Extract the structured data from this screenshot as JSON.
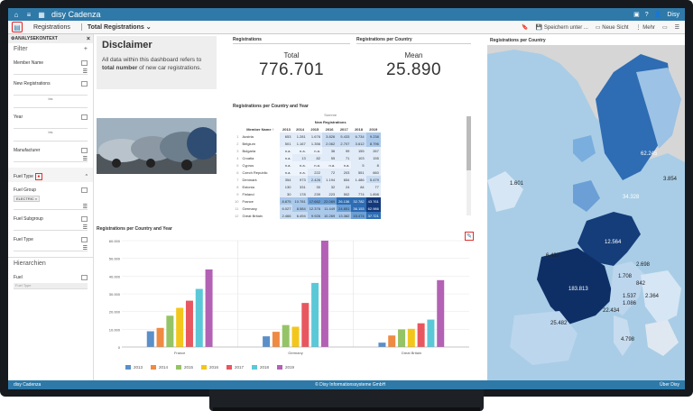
{
  "app": {
    "brand": "disy Cadenza",
    "user": "Disy"
  },
  "secondary": {
    "tab_registrations": "Registrations",
    "tab_total": "Total Registrations",
    "save": "Speichern unter ...",
    "new_view": "Neue Sicht",
    "more": "Mehr"
  },
  "footer": {
    "left": "disy Cadenza",
    "center": "© Disy Informationssysteme GmbH",
    "right": "Über Disy"
  },
  "panel": {
    "header": "ANALYSEKONTEXT",
    "filter": "Filter",
    "filter_plus": "+",
    "fields": [
      {
        "label": "Member Name"
      },
      {
        "label": "New Registrations",
        "bis": "bis"
      },
      {
        "label": "Year",
        "bis": "bis"
      },
      {
        "label": "Manufacturer"
      }
    ],
    "fuel_type_title": "Fuel Type",
    "fuel_group": "Fuel Group",
    "fuel_chip": "ELECTRIC ×",
    "fuel_subgroup": "Fuel Subgroup",
    "fuel_type": "Fuel Type",
    "hierarchy": "Hierarchien",
    "fuel": "Fuel",
    "fuel_placeholder": "Fuel Type"
  },
  "disclaimer": {
    "title": "Disclaimer",
    "line1": "All data within this dashboard refers to",
    "bold": "total number",
    "line2": " of new car registrations."
  },
  "kpi": {
    "reg_title": "Registrations",
    "total_label": "Total",
    "total_value": "776.701",
    "country_title": "Registrations per Country",
    "mean_label": "Mean",
    "mean_value": "25.890"
  },
  "table": {
    "title": "Registrations per Country and Year",
    "sum_label": "Summe",
    "sub_label": "New Registrations",
    "member_header": "Member Name",
    "years": [
      "2013",
      "2014",
      "2015",
      "2016",
      "2017",
      "2018",
      "2019"
    ],
    "rows": [
      {
        "n": "1",
        "c": "Austria",
        "v": [
          "653",
          "1.281",
          "1.676",
          "3.826",
          "5.433",
          "6.734",
          "9.238"
        ]
      },
      {
        "n": "2",
        "c": "Belgium",
        "v": [
          "501",
          "1.167",
          "1.356",
          "2.062",
          "2.707",
          "3.612",
          "8.796"
        ]
      },
      {
        "n": "3",
        "c": "Bulgaria",
        "v": [
          "n.a.",
          "n.a.",
          "n.a.",
          "36",
          "99",
          "155",
          "267"
        ]
      },
      {
        "n": "4",
        "c": "Croatia",
        "v": [
          "n.a.",
          "13",
          "82",
          "55",
          "71",
          "103",
          "155"
        ]
      },
      {
        "n": "5",
        "c": "Cyprus",
        "v": [
          "n.a.",
          "n.a.",
          "n.a.",
          "n.a.",
          "n.a.",
          "5",
          "8"
        ]
      },
      {
        "n": "6",
        "c": "Czech Republic",
        "v": [
          "n.a.",
          "n.a.",
          "222",
          "72",
          "203",
          "551",
          "660"
        ]
      },
      {
        "n": "7",
        "c": "Denmark",
        "v": [
          "354",
          "973",
          "2.426",
          "1.194",
          "654",
          "1.486",
          "5.479"
        ]
      },
      {
        "n": "8",
        "c": "Estonia",
        "v": [
          "130",
          "331",
          "30",
          "32",
          "24",
          "84",
          "77"
        ]
      },
      {
        "n": "9",
        "c": "Finland",
        "v": [
          "30",
          "178",
          "239",
          "223",
          "502",
          "774",
          "1.898"
        ]
      },
      {
        "n": "10",
        "c": "France",
        "v": [
          "8.875",
          "10.781",
          "17.662",
          "22.089",
          "26.136",
          "32.782",
          "43.761"
        ]
      },
      {
        "n": "11",
        "c": "Germany",
        "v": [
          "6.027",
          "8.584",
          "12.376",
          "11.449",
          "24.851",
          "36.153",
          "62.986"
        ]
      },
      {
        "n": "12",
        "c": "Great Britain",
        "v": [
          "2.466",
          "6.494",
          "9.926",
          "10.269",
          "13.382",
          "15.474",
          "37.721"
        ]
      }
    ]
  },
  "chart_title": "Registrations per Country and Year",
  "map_title": "Registrations per Country",
  "map_labels": [
    "1.601",
    "62.245",
    "3.854",
    "34.328",
    "12.564",
    "6.437",
    "2.698",
    "183.813",
    "1.708",
    "842",
    "2.364",
    "1.537",
    "25.482",
    "22.434",
    "4.798",
    "1.086"
  ],
  "colors": {
    "2013": "#5b8fc9",
    "2014": "#ef8a43",
    "2015": "#95c466",
    "2016": "#f3c61c",
    "2017": "#e8575f",
    "2018": "#5bc8d8",
    "2019": "#b361b5"
  },
  "chart_data": {
    "type": "bar",
    "title": "Registrations per Country and Year",
    "categories": [
      "France",
      "Germany",
      "Great Britain"
    ],
    "ylim": [
      0,
      60000
    ],
    "yticks": [
      "0",
      "10.000",
      "20.000",
      "30.000",
      "40.000",
      "50.000",
      "60.000"
    ],
    "series": [
      {
        "name": "2013",
        "values": [
          8875,
          6027,
          2466
        ]
      },
      {
        "name": "2014",
        "values": [
          10781,
          8584,
          6494
        ]
      },
      {
        "name": "2015",
        "values": [
          17662,
          12376,
          9926
        ]
      },
      {
        "name": "2016",
        "values": [
          22089,
          11449,
          10269
        ]
      },
      {
        "name": "2017",
        "values": [
          26136,
          24851,
          13382
        ]
      },
      {
        "name": "2018",
        "values": [
          32782,
          36153,
          15474
        ]
      },
      {
        "name": "2019",
        "values": [
          43761,
          62986,
          37721
        ]
      }
    ]
  }
}
